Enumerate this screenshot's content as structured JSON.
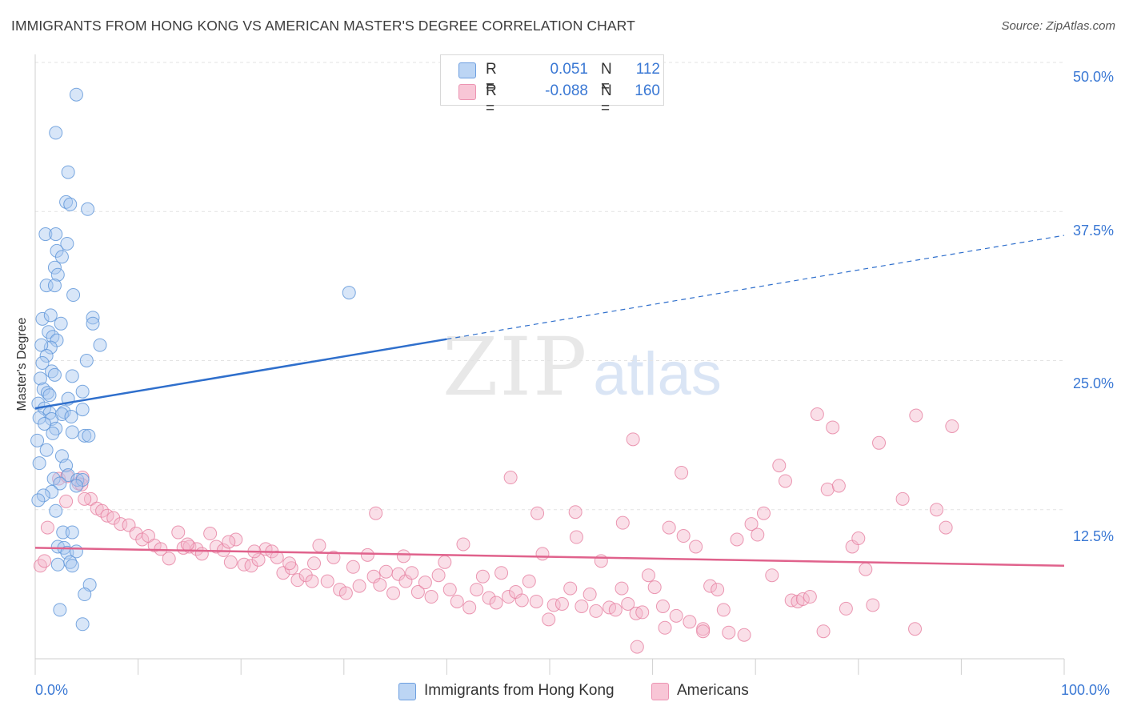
{
  "title": "IMMIGRANTS FROM HONG KONG VS AMERICAN MASTER'S DEGREE CORRELATION CHART",
  "source": "Source: ZipAtlas.com",
  "watermark": {
    "zip": "ZIP",
    "atlas": "atlas"
  },
  "colors": {
    "blue_fill": "#a9c8f0",
    "blue_stroke": "#5b93d8",
    "blue_line": "#2f6fcc",
    "pink_fill": "#f5b8cc",
    "pink_stroke": "#e67fa0",
    "pink_line": "#e0628c",
    "tick_text": "#3a78d4",
    "grid": "#e3e3e3"
  },
  "legend": {
    "rows": [
      {
        "r_label": "R =",
        "r_value": "0.051",
        "n_label": "N =",
        "n_value": "112"
      },
      {
        "r_label": "R =",
        "r_value": "-0.088",
        "n_label": "N =",
        "n_value": "160"
      }
    ]
  },
  "chart_data": {
    "type": "scatter",
    "title": "IMMIGRANTS FROM HONG KONG VS AMERICAN MASTER'S DEGREE CORRELATION CHART",
    "xlabel": "",
    "ylabel": "Master's Degree",
    "xlim": [
      0,
      100
    ],
    "ylim": [
      0,
      52
    ],
    "x_tick_labels": [
      "0.0%",
      "100.0%"
    ],
    "y_ticks": [
      12.5,
      25.0,
      37.5,
      50.0
    ],
    "y_tick_labels": [
      "12.5%",
      "25.0%",
      "37.5%",
      "50.0%"
    ],
    "grid": "horizontal dashed",
    "legend_position": "top-center",
    "series": [
      {
        "name": "Immigrants from Hong Kong",
        "r": 0.051,
        "n": 112,
        "trend": {
          "x": [
            0,
            40
          ],
          "y": [
            21.0,
            26.8
          ],
          "dashed_to": [
            100,
            35.5
          ]
        },
        "points": [
          [
            4.0,
            47.3
          ],
          [
            2.0,
            44.1
          ],
          [
            3.2,
            40.8
          ],
          [
            3.0,
            38.3
          ],
          [
            3.4,
            38.1
          ],
          [
            5.1,
            37.7
          ],
          [
            1.0,
            35.6
          ],
          [
            2.0,
            35.6
          ],
          [
            3.1,
            34.8
          ],
          [
            2.1,
            34.2
          ],
          [
            2.6,
            33.7
          ],
          [
            1.9,
            32.8
          ],
          [
            2.2,
            32.2
          ],
          [
            1.1,
            31.3
          ],
          [
            1.9,
            31.3
          ],
          [
            3.7,
            30.5
          ],
          [
            30.5,
            30.7
          ],
          [
            0.7,
            28.5
          ],
          [
            1.5,
            28.8
          ],
          [
            5.6,
            28.6
          ],
          [
            2.5,
            28.1
          ],
          [
            5.6,
            28.1
          ],
          [
            1.3,
            27.4
          ],
          [
            1.7,
            27.0
          ],
          [
            2.1,
            26.7
          ],
          [
            1.5,
            26.1
          ],
          [
            0.6,
            26.3
          ],
          [
            6.3,
            26.3
          ],
          [
            1.1,
            25.4
          ],
          [
            0.7,
            24.8
          ],
          [
            5.0,
            25.0
          ],
          [
            1.6,
            24.1
          ],
          [
            3.6,
            23.7
          ],
          [
            1.9,
            23.8
          ],
          [
            0.5,
            23.5
          ],
          [
            0.8,
            22.6
          ],
          [
            1.2,
            22.3
          ],
          [
            4.6,
            22.4
          ],
          [
            1.4,
            22.1
          ],
          [
            3.2,
            21.8
          ],
          [
            0.3,
            21.4
          ],
          [
            0.9,
            21.0
          ],
          [
            2.8,
            20.7
          ],
          [
            4.6,
            20.9
          ],
          [
            1.4,
            20.6
          ],
          [
            2.6,
            20.5
          ],
          [
            3.5,
            20.3
          ],
          [
            0.4,
            20.2
          ],
          [
            1.6,
            20.1
          ],
          [
            0.9,
            19.7
          ],
          [
            2.0,
            19.3
          ],
          [
            1.7,
            18.9
          ],
          [
            3.6,
            19.0
          ],
          [
            4.8,
            18.7
          ],
          [
            5.2,
            18.7
          ],
          [
            0.2,
            18.3
          ],
          [
            1.1,
            17.5
          ],
          [
            2.6,
            17.0
          ],
          [
            0.4,
            16.4
          ],
          [
            3.0,
            16.2
          ],
          [
            1.8,
            15.1
          ],
          [
            3.2,
            15.4
          ],
          [
            4.1,
            15.0
          ],
          [
            4.6,
            15.0
          ],
          [
            2.4,
            14.7
          ],
          [
            4.0,
            14.5
          ],
          [
            1.6,
            14.0
          ],
          [
            0.8,
            13.7
          ],
          [
            0.3,
            13.3
          ],
          [
            2.0,
            12.4
          ],
          [
            2.7,
            10.6
          ],
          [
            3.6,
            10.6
          ],
          [
            2.2,
            9.4
          ],
          [
            2.8,
            9.3
          ],
          [
            3.1,
            8.9
          ],
          [
            4.0,
            9.0
          ],
          [
            3.4,
            8.1
          ],
          [
            2.2,
            7.9
          ],
          [
            3.6,
            7.8
          ],
          [
            5.3,
            6.2
          ],
          [
            4.8,
            5.4
          ],
          [
            2.4,
            4.1
          ],
          [
            4.6,
            2.9
          ]
        ]
      },
      {
        "name": "Americans",
        "r": -0.088,
        "n": 160,
        "trend": {
          "x": [
            0,
            100
          ],
          "y": [
            9.3,
            7.8
          ]
        },
        "points": [
          [
            0.5,
            7.8
          ],
          [
            0.9,
            8.2
          ],
          [
            1.2,
            11.0
          ],
          [
            2.3,
            15.1
          ],
          [
            3.1,
            15.3
          ],
          [
            4.2,
            14.7
          ],
          [
            4.6,
            15.2
          ],
          [
            5.4,
            13.4
          ],
          [
            6.0,
            12.6
          ],
          [
            6.5,
            12.4
          ],
          [
            7.0,
            12.0
          ],
          [
            7.6,
            11.8
          ],
          [
            8.3,
            11.3
          ],
          [
            9.1,
            11.2
          ],
          [
            9.8,
            10.5
          ],
          [
            10.4,
            10.0
          ],
          [
            11.0,
            10.3
          ],
          [
            11.6,
            9.5
          ],
          [
            12.2,
            9.2
          ],
          [
            13.0,
            8.4
          ],
          [
            13.9,
            10.6
          ],
          [
            14.4,
            9.3
          ],
          [
            15.0,
            9.4
          ],
          [
            15.7,
            9.2
          ],
          [
            16.2,
            8.8
          ],
          [
            17.0,
            10.5
          ],
          [
            17.6,
            9.4
          ],
          [
            18.3,
            9.1
          ],
          [
            19.0,
            8.1
          ],
          [
            19.5,
            10.0
          ],
          [
            20.3,
            7.9
          ],
          [
            21.0,
            7.8
          ],
          [
            21.7,
            8.3
          ],
          [
            22.4,
            9.2
          ],
          [
            23.0,
            9.0
          ],
          [
            23.5,
            8.5
          ],
          [
            24.1,
            7.2
          ],
          [
            24.9,
            7.6
          ],
          [
            25.5,
            6.6
          ],
          [
            26.3,
            7.0
          ],
          [
            27.1,
            8.0
          ],
          [
            27.6,
            9.5
          ],
          [
            28.4,
            6.5
          ],
          [
            29.0,
            8.5
          ],
          [
            29.6,
            5.8
          ],
          [
            30.2,
            5.5
          ],
          [
            30.9,
            7.7
          ],
          [
            31.5,
            6.1
          ],
          [
            32.3,
            8.7
          ],
          [
            32.9,
            6.9
          ],
          [
            33.5,
            6.2
          ],
          [
            34.1,
            7.3
          ],
          [
            34.8,
            5.5
          ],
          [
            35.3,
            7.1
          ],
          [
            36.0,
            6.5
          ],
          [
            36.6,
            7.2
          ],
          [
            37.2,
            5.6
          ],
          [
            37.9,
            6.4
          ],
          [
            38.5,
            5.2
          ],
          [
            39.2,
            7.0
          ],
          [
            39.8,
            8.1
          ],
          [
            40.3,
            5.8
          ],
          [
            41.0,
            4.8
          ],
          [
            41.6,
            9.6
          ],
          [
            42.2,
            4.3
          ],
          [
            42.9,
            5.8
          ],
          [
            43.5,
            6.9
          ],
          [
            44.1,
            5.1
          ],
          [
            44.8,
            4.7
          ],
          [
            45.3,
            7.2
          ],
          [
            46.0,
            5.2
          ],
          [
            46.7,
            5.6
          ],
          [
            47.3,
            4.9
          ],
          [
            48.0,
            6.5
          ],
          [
            48.7,
            4.8
          ],
          [
            49.3,
            8.8
          ],
          [
            49.9,
            3.3
          ],
          [
            50.4,
            4.5
          ],
          [
            51.2,
            4.6
          ],
          [
            52.0,
            5.9
          ],
          [
            52.6,
            10.2
          ],
          [
            53.1,
            4.4
          ],
          [
            53.9,
            5.4
          ],
          [
            54.5,
            4.0
          ],
          [
            55.0,
            8.2
          ],
          [
            55.8,
            4.3
          ],
          [
            56.4,
            4.1
          ],
          [
            57.0,
            5.9
          ],
          [
            57.6,
            4.6
          ],
          [
            58.4,
            3.8
          ],
          [
            59.0,
            3.9
          ],
          [
            59.6,
            7.0
          ],
          [
            60.2,
            6.0
          ],
          [
            61.0,
            4.4
          ],
          [
            61.6,
            11.0
          ],
          [
            62.3,
            3.6
          ],
          [
            63.0,
            10.3
          ],
          [
            63.6,
            3.1
          ],
          [
            64.2,
            9.4
          ],
          [
            64.9,
            2.5
          ],
          [
            65.6,
            6.1
          ],
          [
            66.3,
            5.8
          ],
          [
            66.9,
            4.1
          ],
          [
            67.4,
            2.2
          ],
          [
            68.2,
            10.0
          ],
          [
            68.9,
            2.0
          ],
          [
            69.6,
            11.3
          ],
          [
            70.2,
            10.4
          ],
          [
            70.8,
            12.2
          ],
          [
            71.6,
            7.0
          ],
          [
            72.3,
            16.2
          ],
          [
            72.9,
            14.9
          ],
          [
            73.5,
            4.9
          ],
          [
            74.1,
            4.8
          ],
          [
            74.6,
            5.0
          ],
          [
            75.3,
            5.2
          ],
          [
            76.0,
            20.5
          ],
          [
            76.6,
            2.3
          ],
          [
            77.0,
            14.2
          ],
          [
            77.5,
            19.4
          ],
          [
            78.1,
            14.5
          ],
          [
            78.8,
            4.2
          ],
          [
            79.4,
            9.4
          ],
          [
            80.0,
            10.1
          ],
          [
            80.7,
            7.5
          ],
          [
            81.4,
            4.5
          ],
          [
            82.0,
            18.1
          ],
          [
            84.3,
            13.4
          ],
          [
            85.6,
            20.4
          ],
          [
            87.6,
            12.5
          ],
          [
            88.5,
            11.0
          ],
          [
            89.1,
            19.5
          ],
          [
            85.5,
            2.5
          ],
          [
            46.2,
            15.2
          ],
          [
            48.8,
            12.2
          ],
          [
            52.5,
            12.3
          ],
          [
            57.1,
            11.4
          ],
          [
            58.1,
            18.4
          ],
          [
            62.8,
            15.6
          ],
          [
            21.3,
            9.0
          ],
          [
            14.8,
            9.6
          ],
          [
            18.8,
            9.8
          ],
          [
            33.1,
            12.2
          ],
          [
            61.2,
            2.6
          ],
          [
            64.9,
            2.3
          ],
          [
            35.8,
            8.6
          ],
          [
            24.7,
            8.0
          ],
          [
            26.9,
            6.5
          ],
          [
            58.5,
            1.0
          ],
          [
            4.5,
            14.6
          ],
          [
            4.8,
            13.4
          ],
          [
            3.0,
            13.2
          ]
        ]
      }
    ]
  },
  "bottom_legend": {
    "items": [
      {
        "label": "Immigrants from Hong Kong"
      },
      {
        "label": "Americans"
      }
    ]
  },
  "axis": {
    "x_left_label": "0.0%",
    "x_right_label": "100.0%",
    "y_labels": [
      "50.0%",
      "37.5%",
      "25.0%",
      "12.5%"
    ],
    "y_title": "Master's Degree"
  }
}
